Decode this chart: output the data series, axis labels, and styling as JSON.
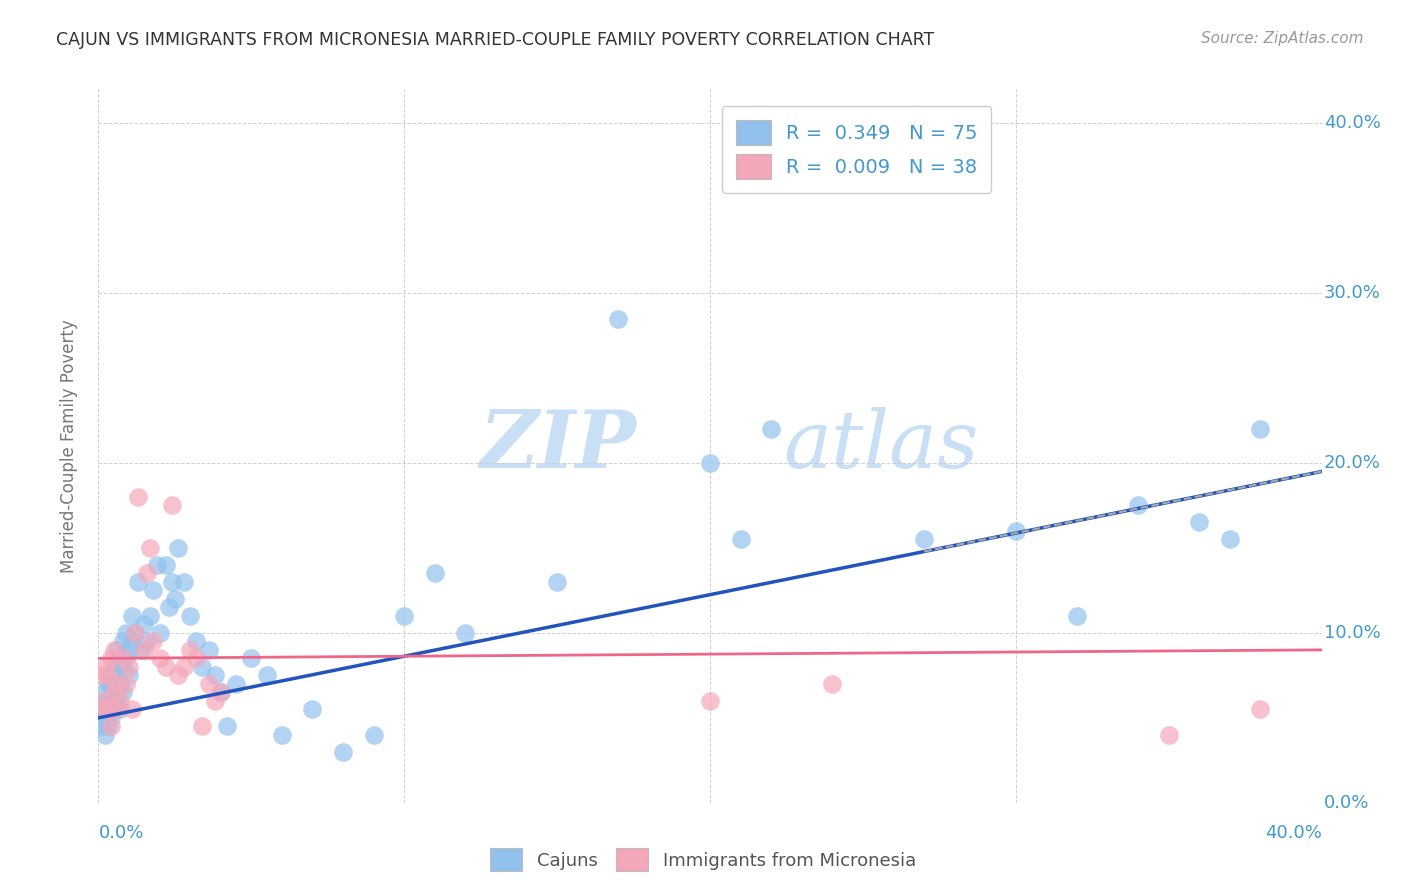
{
  "title": "CAJUN VS IMMIGRANTS FROM MICRONESIA MARRIED-COUPLE FAMILY POVERTY CORRELATION CHART",
  "source": "Source: ZipAtlas.com",
  "ylabel": "Married-Couple Family Poverty",
  "ytick_values": [
    0.0,
    0.1,
    0.2,
    0.3,
    0.4
  ],
  "ytick_labels": [
    "0.0%",
    "10.0%",
    "20.0%",
    "30.0%",
    "40.0%"
  ],
  "xlim": [
    0.0,
    0.4
  ],
  "ylim": [
    0.0,
    0.42
  ],
  "legend_blue_label": "R =  0.349   N = 75",
  "legend_pink_label": "R =  0.009   N = 38",
  "legend_bottom_left": "Cajuns",
  "legend_bottom_right": "Immigrants from Micronesia",
  "blue_color": "#92C1ED",
  "pink_color": "#F4A7B9",
  "blue_line_color": "#2255BB",
  "pink_line_color": "#EE6688",
  "blue_line_y0": 0.05,
  "blue_line_y1": 0.195,
  "pink_line_y0": 0.085,
  "pink_line_y1": 0.09,
  "watermark_zip": "ZIP",
  "watermark_atlas": "atlas",
  "watermark_color_zip": "#C8DFF5",
  "watermark_color_atlas": "#C8DFF5",
  "background_color": "#FFFFFF",
  "grid_color": "#CCCCCC",
  "title_color": "#333333",
  "source_color": "#999999",
  "axis_label_color": "#4499CC",
  "ylabel_color": "#777777",
  "blue_x": [
    0.001,
    0.001,
    0.002,
    0.002,
    0.002,
    0.003,
    0.003,
    0.003,
    0.003,
    0.004,
    0.004,
    0.004,
    0.005,
    0.005,
    0.005,
    0.005,
    0.006,
    0.006,
    0.006,
    0.007,
    0.007,
    0.007,
    0.008,
    0.008,
    0.008,
    0.009,
    0.009,
    0.01,
    0.01,
    0.011,
    0.011,
    0.012,
    0.013,
    0.014,
    0.015,
    0.016,
    0.017,
    0.018,
    0.019,
    0.02,
    0.022,
    0.023,
    0.024,
    0.025,
    0.026,
    0.028,
    0.03,
    0.032,
    0.034,
    0.036,
    0.038,
    0.04,
    0.042,
    0.045,
    0.05,
    0.055,
    0.06,
    0.07,
    0.08,
    0.09,
    0.1,
    0.11,
    0.12,
    0.15,
    0.17,
    0.2,
    0.21,
    0.22,
    0.27,
    0.3,
    0.32,
    0.34,
    0.36,
    0.37,
    0.38
  ],
  "blue_y": [
    0.055,
    0.045,
    0.065,
    0.05,
    0.04,
    0.06,
    0.07,
    0.055,
    0.045,
    0.06,
    0.05,
    0.07,
    0.06,
    0.075,
    0.055,
    0.08,
    0.065,
    0.075,
    0.09,
    0.07,
    0.085,
    0.055,
    0.08,
    0.095,
    0.065,
    0.085,
    0.1,
    0.075,
    0.09,
    0.095,
    0.11,
    0.1,
    0.13,
    0.09,
    0.105,
    0.095,
    0.11,
    0.125,
    0.14,
    0.1,
    0.14,
    0.115,
    0.13,
    0.12,
    0.15,
    0.13,
    0.11,
    0.095,
    0.08,
    0.09,
    0.075,
    0.065,
    0.045,
    0.07,
    0.085,
    0.075,
    0.04,
    0.055,
    0.03,
    0.04,
    0.11,
    0.135,
    0.1,
    0.13,
    0.285,
    0.2,
    0.155,
    0.22,
    0.155,
    0.16,
    0.11,
    0.175,
    0.165,
    0.155,
    0.22
  ],
  "pink_x": [
    0.001,
    0.001,
    0.002,
    0.002,
    0.003,
    0.003,
    0.004,
    0.004,
    0.005,
    0.005,
    0.006,
    0.006,
    0.007,
    0.008,
    0.009,
    0.01,
    0.011,
    0.012,
    0.013,
    0.015,
    0.016,
    0.017,
    0.018,
    0.02,
    0.022,
    0.024,
    0.026,
    0.028,
    0.03,
    0.032,
    0.034,
    0.036,
    0.038,
    0.04,
    0.2,
    0.24,
    0.35,
    0.38
  ],
  "pink_y": [
    0.075,
    0.055,
    0.06,
    0.08,
    0.055,
    0.075,
    0.045,
    0.085,
    0.09,
    0.065,
    0.055,
    0.07,
    0.06,
    0.085,
    0.07,
    0.08,
    0.055,
    0.1,
    0.18,
    0.09,
    0.135,
    0.15,
    0.095,
    0.085,
    0.08,
    0.175,
    0.075,
    0.08,
    0.09,
    0.085,
    0.045,
    0.07,
    0.06,
    0.065,
    0.06,
    0.07,
    0.04,
    0.055
  ]
}
